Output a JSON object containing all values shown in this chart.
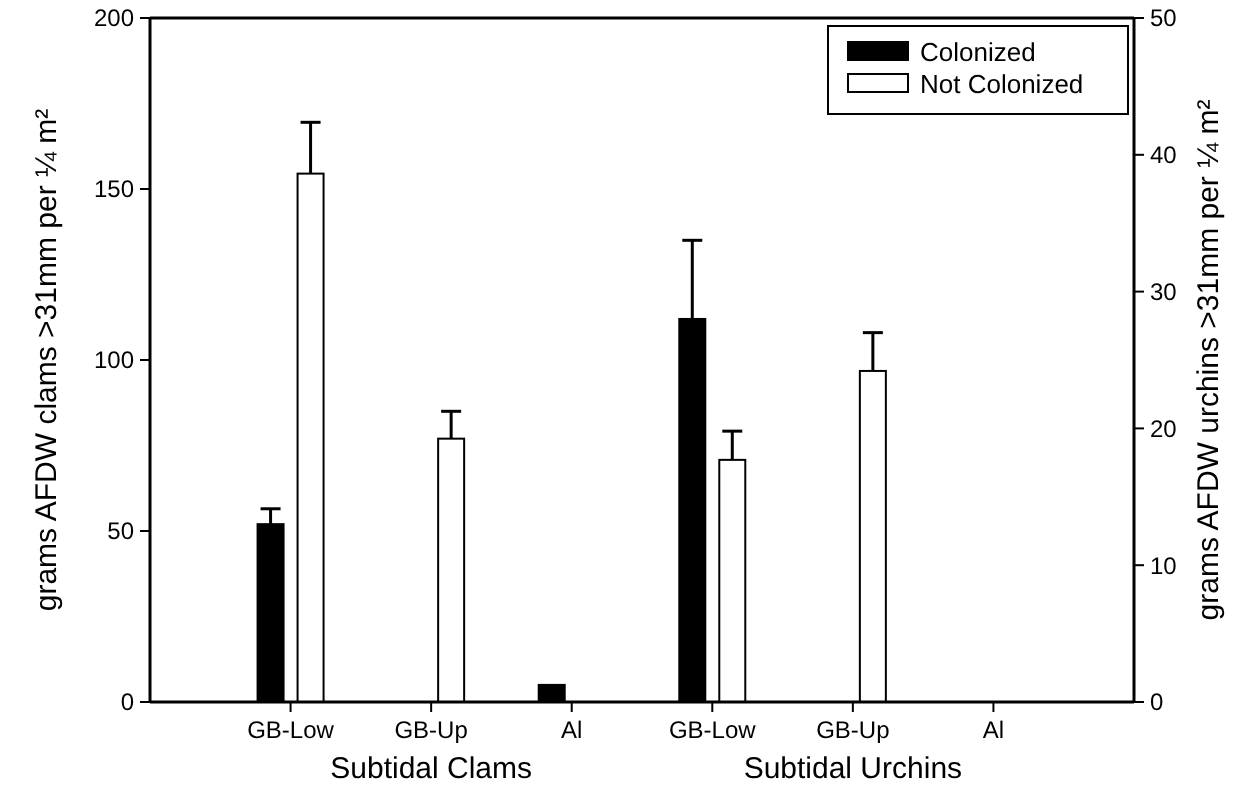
{
  "chart_data": {
    "type": "bar",
    "categories": [
      "GB-Low",
      "GB-Up",
      "Al",
      "GB-Low",
      "GB-Up",
      "Al"
    ],
    "ylabel": "grams AFDW clams >31mm per ¼ m²",
    "y2label": "grams AFDW urchins >31mm per ¼ m²",
    "annotations": [
      "Subtidal Clams",
      "Subtidal Urchins"
    ],
    "ylim": [
      0,
      200
    ],
    "yticks": [
      0,
      50,
      100,
      150,
      200
    ],
    "y2lim": [
      0,
      50
    ],
    "y2ticks": [
      0,
      10,
      20,
      30,
      40,
      50
    ],
    "legend": "top right",
    "grid": false,
    "series": [
      {
        "name": "Colonized",
        "color": "#000000",
        "values": [
          52,
          null,
          5,
          null,
          null,
          null
        ],
        "errors": [
          4.5,
          null,
          null,
          null,
          null,
          null
        ]
      },
      {
        "name": "Not Colonized",
        "color": "#ffffff",
        "values": [
          154.5,
          77,
          null,
          null,
          null,
          null
        ],
        "errors": [
          15,
          8,
          null,
          null,
          null,
          null
        ]
      },
      {
        "color": "#000000",
        "axis": "y2",
        "values": [
          null,
          null,
          null,
          28,
          null,
          null
        ],
        "errors": [
          null,
          null,
          null,
          5.75,
          null,
          null
        ]
      },
      {
        "color": "#ffffff",
        "axis": "y2",
        "values": [
          null,
          null,
          null,
          17.7,
          24.2,
          null
        ],
        "errors": [
          null,
          null,
          null,
          2.1,
          2.8,
          null
        ]
      }
    ]
  }
}
